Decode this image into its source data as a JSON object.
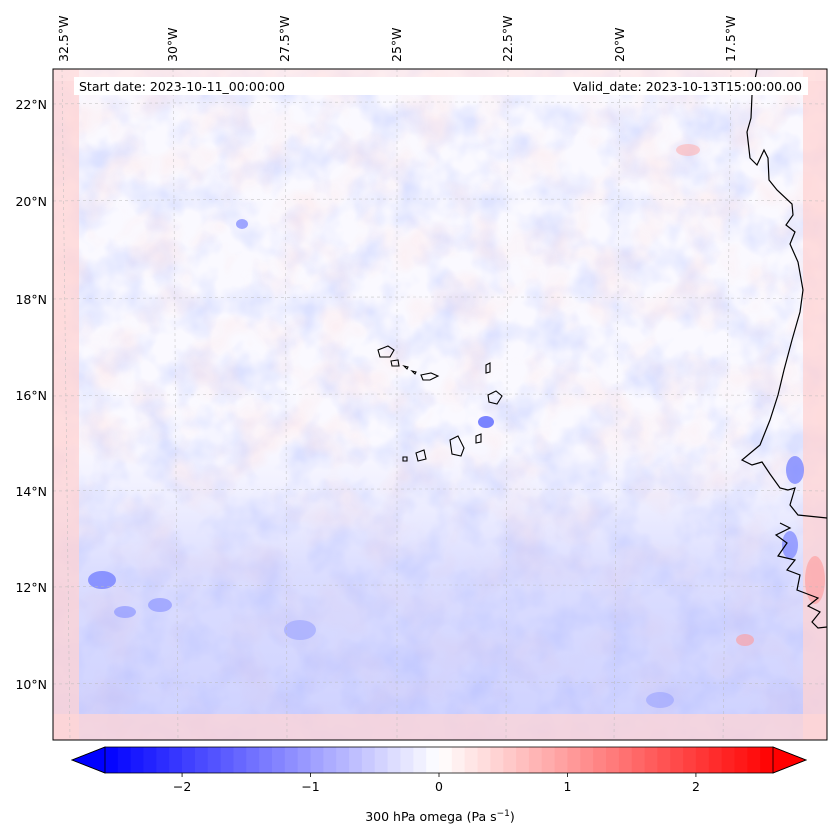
{
  "map": {
    "start_date": "Start date: 2023-10-11_00:00:00",
    "valid_date": "Valid_date: 2023-10-13T15:00:00.00",
    "lon_labels": [
      "32.5°W",
      "30°W",
      "27.5°W",
      "25°W",
      "22.5°W",
      "20°W",
      "17.5°W"
    ],
    "lat_labels": [
      "22°N",
      "20°N",
      "18°N",
      "16°N",
      "14°N",
      "12°N",
      "10°N"
    ],
    "gridlines": true
  },
  "colorbar": {
    "label": "300 hPa omega (Pa s",
    "label_sup": "−1",
    "label_close": ")",
    "ticks": [
      "−2",
      "−1",
      "0",
      "1",
      "2"
    ],
    "tick_values": [
      -2,
      -1,
      0,
      1,
      2
    ],
    "range": [
      -2.6,
      2.6
    ],
    "colormap": "bwr",
    "color_low": "#0000ff",
    "color_mid": "#ffffff",
    "color_high": "#ff0000"
  }
}
